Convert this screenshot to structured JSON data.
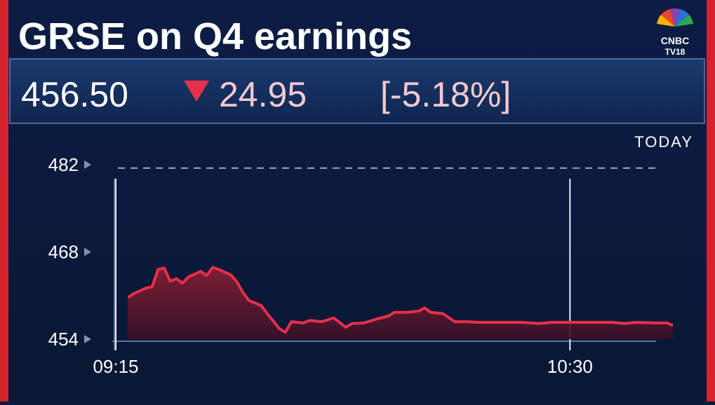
{
  "header": {
    "title": "GRSE on Q4 earnings",
    "logo_top": "CNBC",
    "logo_bottom": "TV18"
  },
  "quote": {
    "price": "456.50",
    "change": 24.95,
    "change_percent": "[-5.18%]"
  },
  "chart_data": {
    "type": "area",
    "period": "TODAY",
    "x": [
      2,
      3,
      5,
      6,
      7,
      8,
      9,
      10,
      11,
      12,
      13,
      14,
      15,
      16,
      17,
      19,
      20,
      21,
      22,
      24,
      25,
      27,
      28,
      29,
      31,
      32,
      34,
      36,
      38,
      39,
      41,
      43,
      45,
      46,
      48,
      50,
      51,
      52,
      54,
      56,
      58,
      60,
      63,
      65,
      67,
      70,
      72,
      75,
      77,
      79,
      82,
      84,
      86,
      89,
      91,
      92
    ],
    "values": [
      460.7,
      461.3,
      462.2,
      462.4,
      465.2,
      465.4,
      463.3,
      463.7,
      463.0,
      464.0,
      464.4,
      464.9,
      464.2,
      465.5,
      465.2,
      464.3,
      463.2,
      461.5,
      460.2,
      459.4,
      458.1,
      455.7,
      455.1,
      456.8,
      456.6,
      457.0,
      456.8,
      457.4,
      455.9,
      456.5,
      456.6,
      457.2,
      457.7,
      458.3,
      458.3,
      458.5,
      459.0,
      458.3,
      458.1,
      456.8,
      456.8,
      456.7,
      456.7,
      456.7,
      456.7,
      456.5,
      456.7,
      456.7,
      456.7,
      456.7,
      456.7,
      456.5,
      456.7,
      456.6,
      456.6,
      456.2
    ],
    "color": "#e8304a",
    "reference_line": 481.45,
    "xlim": [
      0,
      92
    ],
    "xticks": [
      {
        "value": 0,
        "label": "09:15"
      },
      {
        "value": 75,
        "label": "10:30"
      }
    ],
    "ylim": [
      454,
      482
    ],
    "yticks": [
      454,
      468,
      482
    ]
  }
}
